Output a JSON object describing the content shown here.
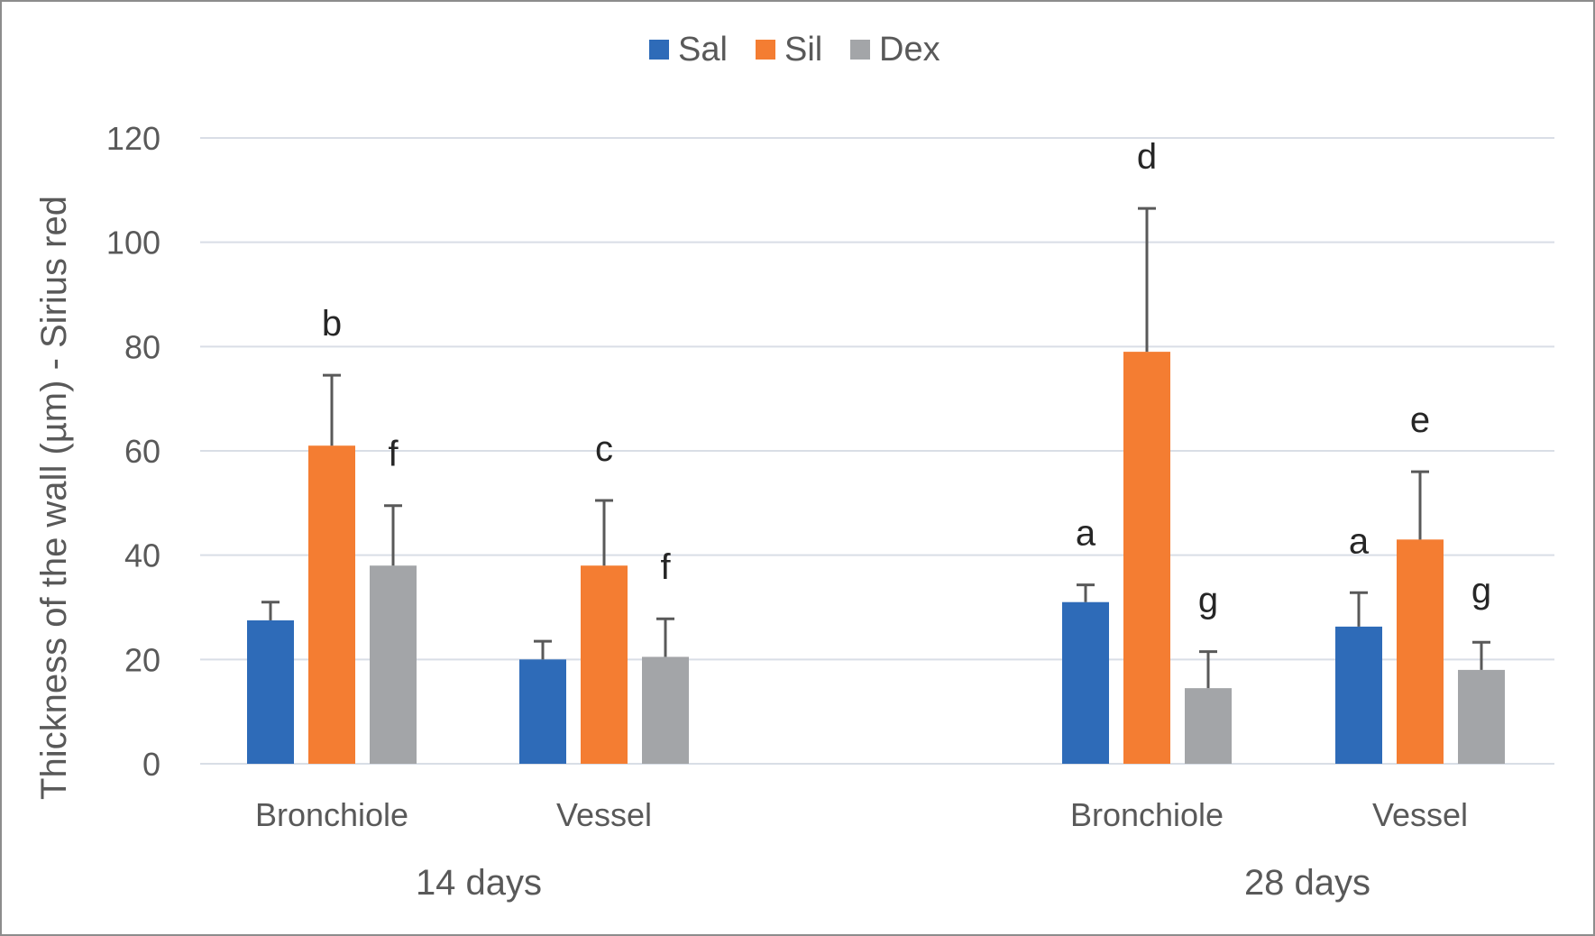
{
  "chart_data": {
    "type": "bar",
    "title": "",
    "ylabel": "Thickness of the wall (µm) - Sirius red",
    "xlabel": "",
    "ylim": [
      0,
      120
    ],
    "yticks": [
      0,
      20,
      40,
      60,
      80,
      100,
      120
    ],
    "grid": true,
    "legend_position": "top-center",
    "groups": [
      {
        "label": "14 days",
        "categories": [
          "Bronchiole",
          "Vessel"
        ]
      },
      {
        "label": "28 days",
        "categories": [
          "Bronchiole",
          "Vessel"
        ]
      }
    ],
    "categories": [
      "Bronchiole",
      "Vessel",
      "Bronchiole",
      "Vessel"
    ],
    "series": [
      {
        "name": "Sal",
        "color": "#2e6bb8",
        "values": [
          27.5,
          20,
          31,
          26.3
        ],
        "errors": [
          3.5,
          3.5,
          3.3,
          6.5
        ],
        "labels": [
          "",
          "",
          "a",
          "a"
        ]
      },
      {
        "name": "Sil",
        "color": "#f47d32",
        "values": [
          61,
          38,
          79,
          43
        ],
        "errors": [
          13.5,
          12.5,
          27.5,
          13
        ],
        "labels": [
          "b",
          "c",
          "d",
          "e"
        ]
      },
      {
        "name": "Dex",
        "color": "#a3a5a8",
        "values": [
          38,
          20.5,
          14.5,
          18
        ],
        "errors": [
          11.5,
          7.3,
          7,
          5.3
        ],
        "labels": [
          "f",
          "f",
          "g",
          "g"
        ]
      }
    ]
  }
}
